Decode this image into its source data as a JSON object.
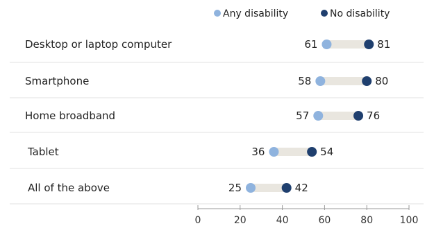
{
  "chart_data": {
    "type": "dot",
    "categories": [
      "Desktop or laptop computer",
      "Smartphone",
      "Home broadband",
      "Tablet",
      "All of the above"
    ],
    "series": [
      {
        "name": "Any disability",
        "values": [
          61,
          58,
          57,
          36,
          25
        ],
        "color": "#8fb3de"
      },
      {
        "name": "No disability",
        "values": [
          81,
          80,
          76,
          54,
          42
        ],
        "color": "#1f3f6e"
      }
    ],
    "xlim": [
      0,
      100
    ],
    "xticks": [
      0,
      20,
      40,
      60,
      80,
      100
    ],
    "legend_position": "top-right",
    "grid": false
  }
}
